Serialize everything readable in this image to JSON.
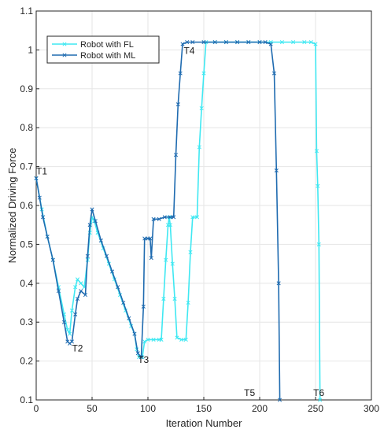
{
  "chart_data": {
    "type": "line",
    "title": "",
    "xlabel": "Iteration Number",
    "ylabel": "Normalized Driving Force",
    "xlim": [
      0,
      300
    ],
    "ylim": [
      0.1,
      1.1
    ],
    "xticks": [
      0,
      50,
      100,
      150,
      200,
      250,
      300
    ],
    "yticks": [
      0.1,
      0.2,
      0.3,
      0.4,
      0.5,
      0.6,
      0.7,
      0.8,
      0.9,
      1,
      1.1
    ],
    "xtick_labels": [
      "0",
      "50",
      "100",
      "150",
      "200",
      "250",
      "300"
    ],
    "ytick_labels": [
      "0.1",
      "0.2",
      "0.3",
      "0.4",
      "0.5",
      "0.6",
      "0.7",
      "0.8",
      "0.9",
      "1",
      "1.1"
    ],
    "grid": true,
    "legend_position": "top-left",
    "series": [
      {
        "name": "Robot with FL",
        "color": "#3fe8f2",
        "marker": "x",
        "points": [
          [
            0,
            0.67
          ],
          [
            5,
            0.59
          ],
          [
            10,
            0.52
          ],
          [
            15,
            0.46
          ],
          [
            20,
            0.39
          ],
          [
            25,
            0.32
          ],
          [
            28,
            0.28
          ],
          [
            30,
            0.27
          ],
          [
            32,
            0.33
          ],
          [
            35,
            0.39
          ],
          [
            37,
            0.41
          ],
          [
            40,
            0.4
          ],
          [
            43,
            0.39
          ],
          [
            46,
            0.46
          ],
          [
            48,
            0.53
          ],
          [
            50,
            0.57
          ],
          [
            52,
            0.56
          ],
          [
            55,
            0.53
          ],
          [
            60,
            0.49
          ],
          [
            65,
            0.45
          ],
          [
            70,
            0.41
          ],
          [
            75,
            0.37
          ],
          [
            80,
            0.33
          ],
          [
            85,
            0.29
          ],
          [
            88,
            0.27
          ],
          [
            90,
            0.23
          ],
          [
            92,
            0.21
          ],
          [
            95,
            0.21
          ],
          [
            97,
            0.25
          ],
          [
            100,
            0.255
          ],
          [
            105,
            0.255
          ],
          [
            110,
            0.255
          ],
          [
            112,
            0.255
          ],
          [
            114,
            0.36
          ],
          [
            116,
            0.46
          ],
          [
            118,
            0.55
          ],
          [
            119,
            0.57
          ],
          [
            120,
            0.55
          ],
          [
            122,
            0.45
          ],
          [
            124,
            0.36
          ],
          [
            126,
            0.26
          ],
          [
            130,
            0.255
          ],
          [
            134,
            0.255
          ],
          [
            136,
            0.35
          ],
          [
            138,
            0.48
          ],
          [
            140,
            0.57
          ],
          [
            144,
            0.57
          ],
          [
            146,
            0.75
          ],
          [
            148,
            0.85
          ],
          [
            150,
            0.94
          ],
          [
            152,
            1.02
          ],
          [
            160,
            1.02
          ],
          [
            170,
            1.02
          ],
          [
            180,
            1.02
          ],
          [
            190,
            1.02
          ],
          [
            200,
            1.02
          ],
          [
            210,
            1.02
          ],
          [
            220,
            1.02
          ],
          [
            230,
            1.02
          ],
          [
            240,
            1.02
          ],
          [
            246,
            1.02
          ],
          [
            250,
            1.015
          ],
          [
            251,
            0.74
          ],
          [
            252,
            0.65
          ],
          [
            253,
            0.5
          ],
          [
            254,
            0.1
          ]
        ]
      },
      {
        "name": "Robot with ML",
        "color": "#1f6bb0",
        "marker": "x",
        "points": [
          [
            0,
            0.67
          ],
          [
            3,
            0.62
          ],
          [
            6,
            0.57
          ],
          [
            10,
            0.52
          ],
          [
            15,
            0.46
          ],
          [
            20,
            0.38
          ],
          [
            25,
            0.3
          ],
          [
            28,
            0.25
          ],
          [
            30,
            0.245
          ],
          [
            32,
            0.25
          ],
          [
            35,
            0.32
          ],
          [
            37,
            0.36
          ],
          [
            40,
            0.38
          ],
          [
            44,
            0.37
          ],
          [
            46,
            0.47
          ],
          [
            48,
            0.55
          ],
          [
            50,
            0.59
          ],
          [
            53,
            0.56
          ],
          [
            58,
            0.51
          ],
          [
            63,
            0.47
          ],
          [
            68,
            0.43
          ],
          [
            73,
            0.39
          ],
          [
            78,
            0.35
          ],
          [
            83,
            0.31
          ],
          [
            88,
            0.27
          ],
          [
            91,
            0.22
          ],
          [
            94,
            0.21
          ],
          [
            96,
            0.34
          ],
          [
            97,
            0.515
          ],
          [
            100,
            0.515
          ],
          [
            102,
            0.515
          ],
          [
            103,
            0.465
          ],
          [
            105,
            0.565
          ],
          [
            110,
            0.565
          ],
          [
            115,
            0.57
          ],
          [
            120,
            0.57
          ],
          [
            123,
            0.57
          ],
          [
            125,
            0.73
          ],
          [
            127,
            0.86
          ],
          [
            129,
            0.94
          ],
          [
            131,
            1.015
          ],
          [
            135,
            1.02
          ],
          [
            140,
            1.02
          ],
          [
            150,
            1.02
          ],
          [
            160,
            1.02
          ],
          [
            170,
            1.02
          ],
          [
            180,
            1.02
          ],
          [
            190,
            1.02
          ],
          [
            200,
            1.02
          ],
          [
            205,
            1.02
          ],
          [
            210,
            1.015
          ],
          [
            213,
            0.94
          ],
          [
            215,
            0.69
          ],
          [
            217,
            0.4
          ],
          [
            218,
            0.1
          ]
        ]
      }
    ],
    "annotations": [
      {
        "text": "T1",
        "x": 0,
        "y": 0.68
      },
      {
        "text": "T2",
        "x": 32,
        "y": 0.225
      },
      {
        "text": "T3",
        "x": 91,
        "y": 0.195
      },
      {
        "text": "T4",
        "x": 132,
        "y": 0.99
      },
      {
        "text": "T5",
        "x": 186,
        "y": 0.11
      },
      {
        "text": "T6",
        "x": 248,
        "y": 0.11
      }
    ]
  }
}
